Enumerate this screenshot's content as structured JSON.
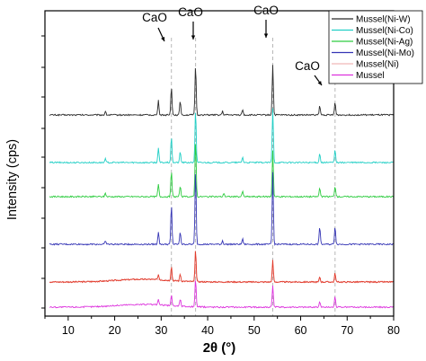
{
  "chart_data": {
    "type": "line",
    "title": "",
    "xlabel": "2θ (°)",
    "ylabel": "Intensity (cps)",
    "xlim": [
      5,
      80
    ],
    "x_ticks": [
      10,
      20,
      30,
      40,
      50,
      60,
      70,
      80
    ],
    "x_tick_labels": [
      "10",
      "20",
      "30",
      "40",
      "50",
      "60",
      "70",
      "80"
    ],
    "legend_position": "top-right",
    "series": [
      {
        "name": "Mussel(Ni-W)",
        "color": "#2b2b2b",
        "offset_rank": 6,
        "peaks": [
          [
            18.0,
            2
          ],
          [
            29.4,
            8
          ],
          [
            32.2,
            16
          ],
          [
            34.1,
            8
          ],
          [
            37.4,
            28
          ],
          [
            43.2,
            2
          ],
          [
            47.5,
            3
          ],
          [
            54.0,
            28
          ],
          [
            64.1,
            5
          ],
          [
            67.4,
            7
          ]
        ]
      },
      {
        "name": "Mussel(Ni-Co)",
        "color": "#22cfc6",
        "offset_rank": 5,
        "peaks": [
          [
            18.0,
            2
          ],
          [
            29.4,
            8
          ],
          [
            32.2,
            14
          ],
          [
            34.1,
            6
          ],
          [
            37.4,
            30
          ],
          [
            47.5,
            3
          ],
          [
            54.0,
            30
          ],
          [
            64.1,
            5
          ],
          [
            67.4,
            7
          ]
        ]
      },
      {
        "name": "Mussel(Ni-Ag)",
        "color": "#2ecc40",
        "offset_rank": 4,
        "peaks": [
          [
            18.0,
            2
          ],
          [
            29.4,
            7
          ],
          [
            32.2,
            14
          ],
          [
            34.1,
            6
          ],
          [
            37.4,
            32
          ],
          [
            43.5,
            2
          ],
          [
            47.5,
            3
          ],
          [
            54.0,
            26
          ],
          [
            64.1,
            5
          ],
          [
            67.4,
            6
          ]
        ]
      },
      {
        "name": "Mussel(Ni-Mo)",
        "color": "#3535b5",
        "offset_rank": 3,
        "peaks": [
          [
            18.0,
            2
          ],
          [
            29.4,
            7
          ],
          [
            32.2,
            22
          ],
          [
            34.1,
            7
          ],
          [
            37.4,
            42
          ],
          [
            43.2,
            2
          ],
          [
            47.5,
            3
          ],
          [
            54.0,
            40
          ],
          [
            64.1,
            10
          ],
          [
            67.4,
            10
          ]
        ]
      },
      {
        "name": "Mussel(Ni)",
        "color": "#f0b8b8",
        "offset_rank": 2,
        "peaks": [
          [
            32.2,
            4
          ],
          [
            37.4,
            10
          ],
          [
            54.0,
            8
          ],
          [
            64.1,
            2
          ],
          [
            67.4,
            3
          ]
        ]
      },
      {
        "name": "Mussel",
        "color": "#dd33dd",
        "offset_rank": 1,
        "peaks": [
          [
            29.4,
            3
          ],
          [
            32.2,
            6
          ],
          [
            34.1,
            4
          ],
          [
            37.4,
            16
          ],
          [
            54.0,
            12
          ],
          [
            64.1,
            3
          ],
          [
            67.4,
            6
          ]
        ]
      },
      {
        "name": "",
        "color": "#e23a2a",
        "offset_rank": 2,
        "in_legend": false,
        "peaks": [
          [
            29.4,
            3
          ],
          [
            32.2,
            8
          ],
          [
            34.1,
            4
          ],
          [
            37.4,
            18
          ],
          [
            54.0,
            12
          ],
          [
            64.1,
            3
          ],
          [
            67.4,
            5
          ]
        ]
      }
    ],
    "annotations": [
      {
        "text": "CaO",
        "x": 32.2
      },
      {
        "text": "CaO",
        "x": 37.4
      },
      {
        "text": "CaO",
        "x": 54.0
      },
      {
        "text": "CaO",
        "x": 67.4
      }
    ],
    "reference_lines_x": [
      32.2,
      37.4,
      54.0,
      67.4
    ]
  }
}
